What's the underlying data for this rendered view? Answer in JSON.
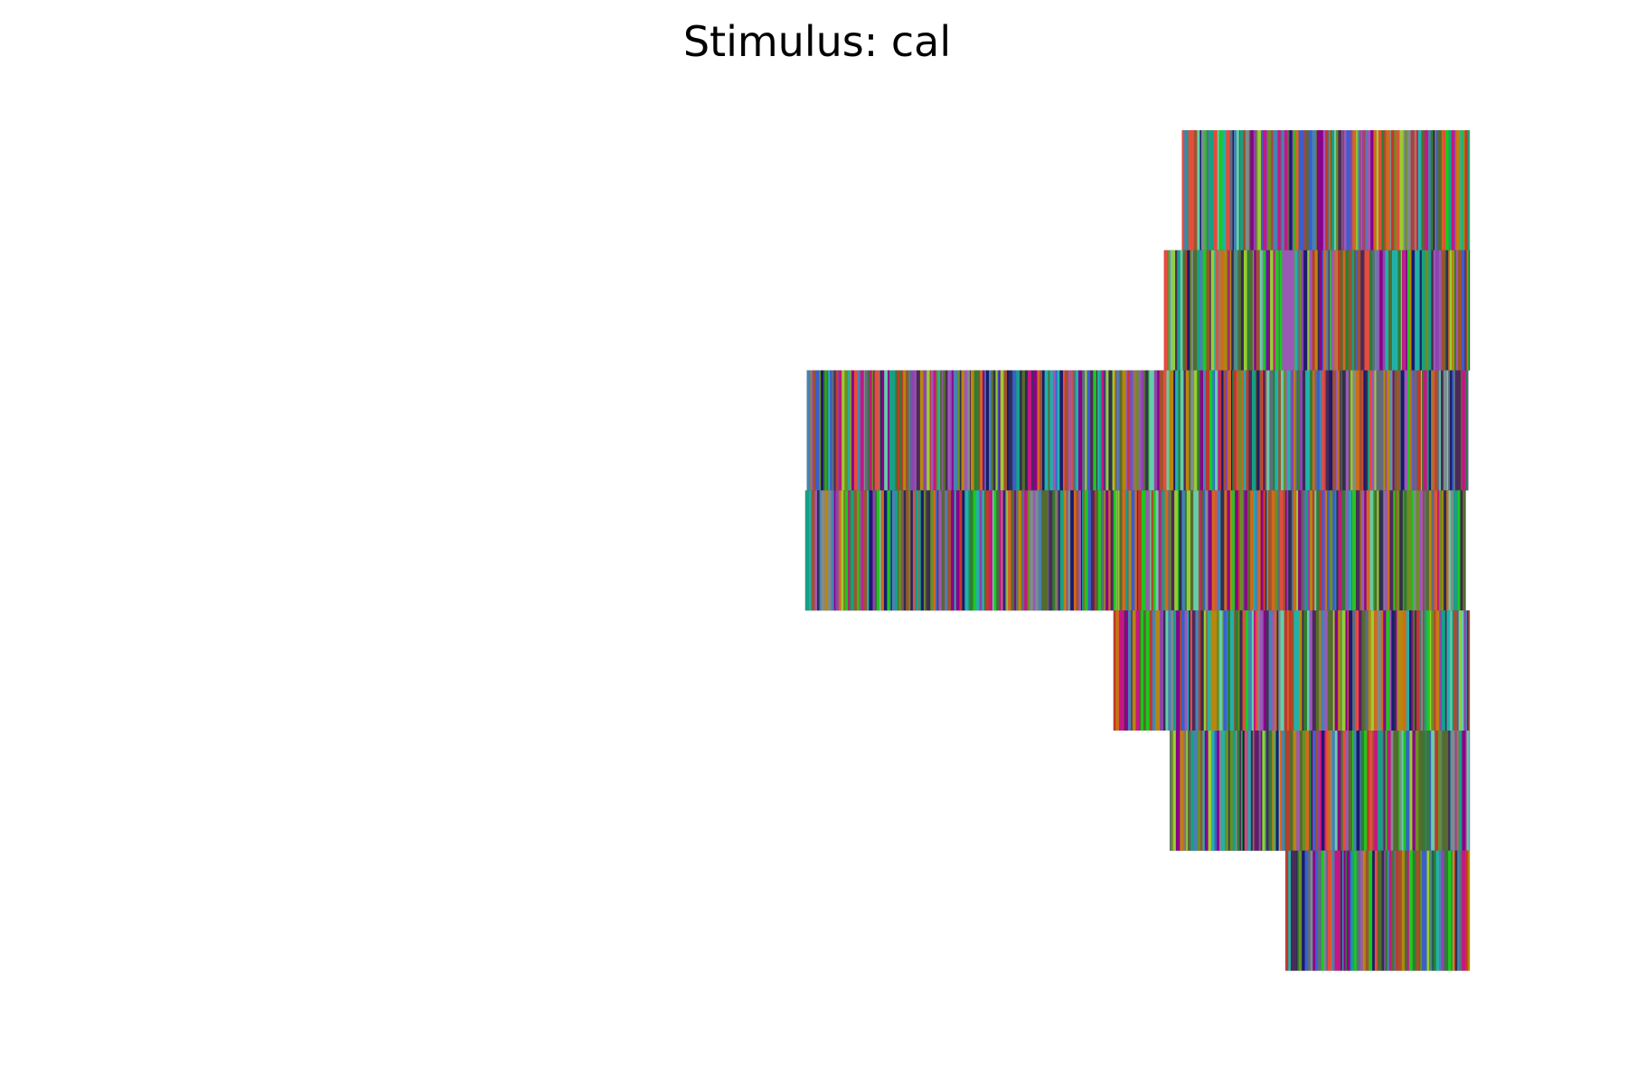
{
  "chart_data": {
    "type": "heatmap",
    "title": "Stimulus: cal",
    "xlabel": "",
    "ylabel": "",
    "axes_visible": false,
    "grid": false,
    "legend": "none",
    "rows": [
      {
        "start": 0.647,
        "end": 1.0
      },
      {
        "start": 0.625,
        "end": 1.0
      },
      {
        "start": 0.187,
        "end": 0.998
      },
      {
        "start": 0.185,
        "end": 0.995
      },
      {
        "start": 0.563,
        "end": 1.0
      },
      {
        "start": 0.632,
        "end": 1.0
      },
      {
        "start": 0.774,
        "end": 1.0
      }
    ],
    "palette": [
      "#1a1a6e",
      "#4b2a5a",
      "#2e7d32",
      "#1ec81e",
      "#8e44ad",
      "#c0392b",
      "#16a085",
      "#7f8c8d",
      "#556b2f",
      "#9acd32",
      "#c71585",
      "#3a5fcd",
      "#d2691e",
      "#20b2aa",
      "#6b8e23",
      "#8b008b",
      "#5d6d7e",
      "#b8860b",
      "#4682b4",
      "#a0522d",
      "#2f2f4f",
      "#66cdaa",
      "#9b59b6",
      "#e74c3c"
    ]
  }
}
